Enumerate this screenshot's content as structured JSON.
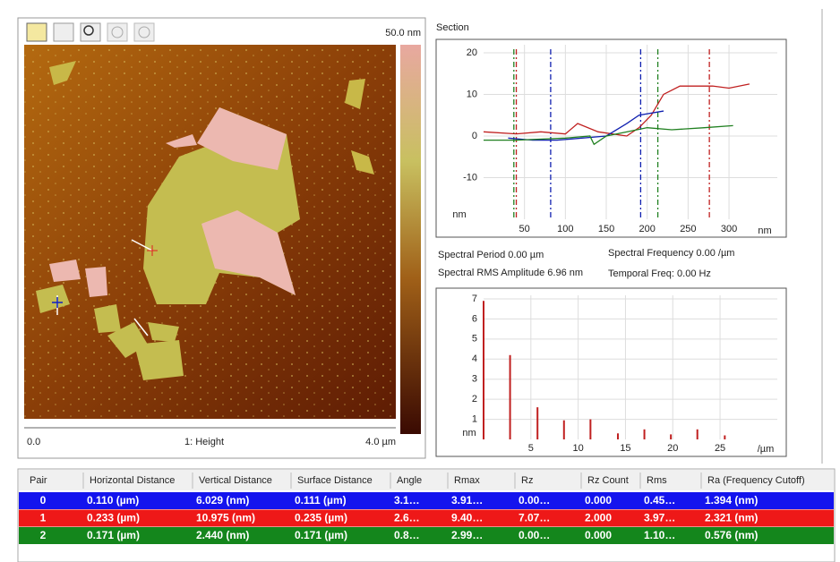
{
  "image_panel": {
    "scale_max": "50.0 nm",
    "x_start": "0.0",
    "channel": "1: Height",
    "x_end": "4.0 µm"
  },
  "chart_data": [
    {
      "type": "line",
      "title": "Section",
      "ylabel": "nm",
      "xlabel": "nm",
      "xlim": [
        0,
        370
      ],
      "ylim": [
        -20,
        23
      ],
      "xticks": [
        50,
        100,
        150,
        200,
        250,
        300
      ],
      "yticks": [
        20,
        10,
        0,
        -10
      ],
      "grid": true,
      "series": [
        {
          "color": "#c02020",
          "x": [
            0,
            40,
            70,
            100,
            115,
            140,
            175,
            190,
            205,
            220,
            240,
            280,
            300,
            325
          ],
          "values": [
            1,
            0.5,
            1,
            0.5,
            3,
            1,
            0,
            2,
            5,
            10,
            12,
            12,
            11.5,
            12.5
          ]
        },
        {
          "color": "#1020b0",
          "x": [
            30,
            60,
            90,
            150,
            175,
            190,
            220
          ],
          "values": [
            -0.5,
            -1,
            -1,
            0,
            3,
            5,
            6
          ]
        },
        {
          "color": "#208020",
          "x": [
            0,
            40,
            100,
            130,
            135,
            150,
            175,
            200,
            230,
            270,
            305
          ],
          "values": [
            -1,
            -1,
            -0.5,
            0,
            -2,
            0,
            1,
            2,
            1.5,
            2,
            2.5
          ]
        }
      ],
      "cursors": [
        {
          "color": "#208020",
          "x": 37
        },
        {
          "color": "#c02020",
          "x": 40
        },
        {
          "color": "#1020b0",
          "x": 82
        },
        {
          "color": "#1020b0",
          "x": 192
        },
        {
          "color": "#208020",
          "x": 213
        },
        {
          "color": "#c02020",
          "x": 276
        }
      ]
    },
    {
      "type": "bar",
      "ylabel": "nm",
      "xlabel": "/µm",
      "color": "#c02020",
      "xlim": [
        0,
        32
      ],
      "ylim": [
        0,
        7.4
      ],
      "xticks": [
        5,
        10,
        15,
        20,
        25
      ],
      "yticks": [
        1,
        2,
        3,
        4,
        5,
        6,
        7
      ],
      "grid": true,
      "x": [
        0,
        2.8,
        5.7,
        8.5,
        11.3,
        14.2,
        17,
        19.8,
        22.6,
        25.5
      ],
      "values": [
        6.9,
        4.2,
        1.6,
        0.95,
        1.0,
        0.3,
        0.5,
        0.25,
        0.5,
        0.2
      ]
    }
  ],
  "spectral_info": [
    "Spectral Period 0.00 µm",
    "Spectral Frequency 0.00 /µm",
    "Spectral RMS Amplitude 6.96 nm",
    "Temporal Freq: 0.00 Hz"
  ],
  "table": {
    "headers": [
      "Pair",
      "Horizontal Distance",
      "Vertical Distance",
      "Surface Distance",
      "Angle",
      "Rmax",
      "Rz",
      "Rz Count",
      "Rms",
      "Ra (Frequency Cutoff)"
    ],
    "row_colors": [
      "#1414ee",
      "#ee1818",
      "#14861c"
    ],
    "rows": [
      [
        "0",
        "0.110 (µm)",
        "6.029 (nm)",
        "0.111 (µm)",
        "3.1…",
        "3.91…",
        "0.00…",
        "0.000",
        "0.45…",
        "1.394 (nm)"
      ],
      [
        "1",
        "0.233 (µm)",
        "10.975 (nm)",
        "0.235 (µm)",
        "2.6…",
        "9.40…",
        "7.07…",
        "2.000",
        "3.97…",
        "2.321 (nm)"
      ],
      [
        "2",
        "0.171 (µm)",
        "2.440 (nm)",
        "0.171 (µm)",
        "0.8…",
        "2.99…",
        "0.00…",
        "0.000",
        "1.10…",
        "0.576 (nm)"
      ]
    ]
  }
}
